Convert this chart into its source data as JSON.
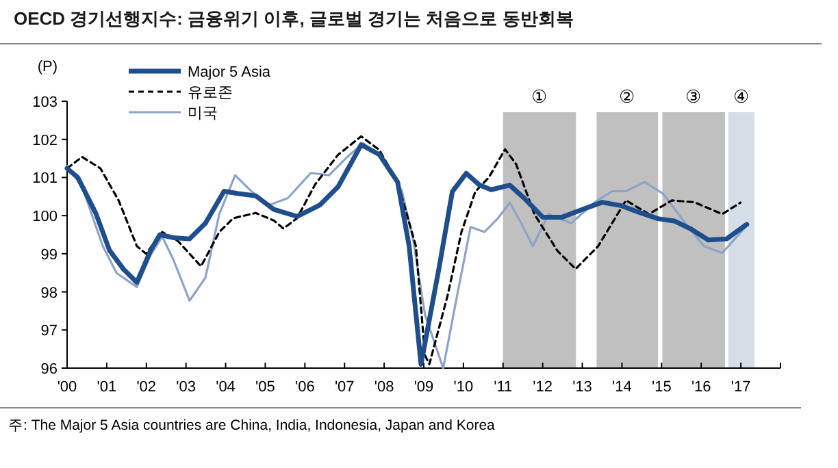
{
  "chart_data": {
    "type": "line",
    "title": "OECD 경기선행지수: 금융위기 이후, 글로벌 경기는 처음으로 동반회복",
    "ylabel": "(P)",
    "annotations": [
      "주: The Major 5 Asia countries are China, India, Indonesia, Japan and Korea"
    ],
    "legend": "top left",
    "xlim": [
      2000,
      2018
    ],
    "xticks": [
      {
        "value": 2000,
        "label": "'00"
      },
      {
        "value": 2001,
        "label": "'01"
      },
      {
        "value": 2002,
        "label": "'02"
      },
      {
        "value": 2003,
        "label": "'03"
      },
      {
        "value": 2004,
        "label": "'04"
      },
      {
        "value": 2005,
        "label": "'05"
      },
      {
        "value": 2006,
        "label": "'06"
      },
      {
        "value": 2007,
        "label": "'07"
      },
      {
        "value": 2008,
        "label": "'08"
      },
      {
        "value": 2009,
        "label": "'09"
      },
      {
        "value": 2010,
        "label": "'10"
      },
      {
        "value": 2011,
        "label": "'11"
      },
      {
        "value": 2012,
        "label": "'12"
      },
      {
        "value": 2013,
        "label": "'13"
      },
      {
        "value": 2014,
        "label": "'14"
      },
      {
        "value": 2015,
        "label": "'15"
      },
      {
        "value": 2016,
        "label": "'16"
      },
      {
        "value": 2017,
        "label": "'17"
      },
      {
        "value": 2018,
        "label": null
      }
    ],
    "ylim": [
      96,
      103
    ],
    "yticks": [
      96,
      97,
      98,
      99,
      100,
      101,
      102,
      103
    ],
    "bands": [
      {
        "axis": "x",
        "from": 2011.0,
        "to": 2012.84,
        "label": "①",
        "color": "#c0c0c0"
      },
      {
        "axis": "x",
        "from": 2013.36,
        "to": 2014.91,
        "label": "②",
        "color": "#c0c0c0"
      },
      {
        "axis": "x",
        "from": 2015.02,
        "to": 2016.6,
        "label": "③",
        "color": "#c0c0c0"
      },
      {
        "axis": "x",
        "from": 2016.68,
        "to": 2017.34,
        "label": "④",
        "color": "#d5dde6"
      }
    ],
    "series": [
      {
        "name": "Major 5 Asia",
        "color": "#1f4e8c",
        "line_style": "solid",
        "x": [
          2000,
          2000.27,
          2000.73,
          2001.07,
          2001.42,
          2001.76,
          2002.11,
          2002.34,
          2002.68,
          2003.09,
          2003.49,
          2003.96,
          2004.3,
          2004.76,
          2005.22,
          2005.8,
          2006.38,
          2006.84,
          2007.42,
          2007.88,
          2008.34,
          2008.63,
          2008.93,
          2009.38,
          2009.72,
          2010.07,
          2010.41,
          2010.7,
          2011.17,
          2011.55,
          2012.0,
          2012.49,
          2012.95,
          2013.5,
          2013.99,
          2014.45,
          2014.91,
          2015.32,
          2015.72,
          2016.18,
          2016.64,
          2017.15
        ],
        "values": [
          101.24,
          101.0,
          100.05,
          99.09,
          98.6,
          98.25,
          99.09,
          99.5,
          99.42,
          99.39,
          99.8,
          100.64,
          100.58,
          100.52,
          100.16,
          99.98,
          100.28,
          100.76,
          101.86,
          101.6,
          100.88,
          99.2,
          96.1,
          98.6,
          100.63,
          101.11,
          100.8,
          100.68,
          100.8,
          100.44,
          99.96,
          99.96,
          100.14,
          100.35,
          100.26,
          100.08,
          99.92,
          99.86,
          99.66,
          99.36,
          99.39,
          99.77
        ]
      },
      {
        "name": "유로존",
        "color": "#000000",
        "line_style": "dashed",
        "x": [
          2000,
          2000.38,
          2000.84,
          2001.3,
          2001.76,
          2001.99,
          2002.4,
          2002.8,
          2003.38,
          2003.84,
          2004.19,
          2004.76,
          2005.22,
          2005.46,
          2005.8,
          2006.26,
          2006.84,
          2007.42,
          2007.88,
          2008.34,
          2008.8,
          2009.03,
          2009.14,
          2009.6,
          2009.95,
          2010.3,
          2010.64,
          2011.05,
          2011.33,
          2011.79,
          2012.37,
          2012.83,
          2013.4,
          2013.75,
          2014.1,
          2014.68,
          2015.26,
          2015.83,
          2016.53,
          2016.99
        ],
        "values": [
          101.24,
          101.54,
          101.24,
          100.4,
          99.2,
          99.0,
          99.57,
          99.33,
          98.67,
          99.57,
          99.93,
          100.07,
          99.87,
          99.66,
          99.93,
          100.82,
          101.6,
          102.08,
          101.72,
          100.88,
          99.2,
          96.34,
          96.1,
          97.9,
          99.57,
          100.63,
          101.0,
          101.74,
          101.35,
          100.04,
          99.08,
          98.6,
          99.2,
          99.8,
          100.4,
          100.04,
          100.4,
          100.35,
          100.04,
          100.34
        ]
      },
      {
        "name": "미국",
        "color": "#8ea3c8",
        "line_style": "solid",
        "x": [
          2000,
          2000.38,
          2000.9,
          2001.25,
          2001.76,
          2002.11,
          2002.4,
          2002.68,
          2003.09,
          2003.49,
          2003.84,
          2004.24,
          2004.65,
          2005.11,
          2005.57,
          2006.15,
          2006.61,
          2007.07,
          2007.47,
          2007.99,
          2008.45,
          2008.74,
          2009.03,
          2009.49,
          2009.84,
          2010.18,
          2010.53,
          2010.87,
          2011.17,
          2011.46,
          2011.75,
          2012.15,
          2012.72,
          2013.3,
          2013.75,
          2014.1,
          2014.57,
          2015.03,
          2015.6,
          2016.07,
          2016.53,
          2017.15
        ],
        "values": [
          101.3,
          100.76,
          99.2,
          98.49,
          98.13,
          98.97,
          99.45,
          98.85,
          97.77,
          98.37,
          100.04,
          101.06,
          100.64,
          100.28,
          100.46,
          101.12,
          101.06,
          101.54,
          101.9,
          101.48,
          100.64,
          99.33,
          97.4,
          96.0,
          97.9,
          99.7,
          99.57,
          99.93,
          100.34,
          99.8,
          99.2,
          100.04,
          99.8,
          100.34,
          100.64,
          100.64,
          100.88,
          100.58,
          99.8,
          99.2,
          99.02,
          99.74
        ]
      }
    ]
  }
}
